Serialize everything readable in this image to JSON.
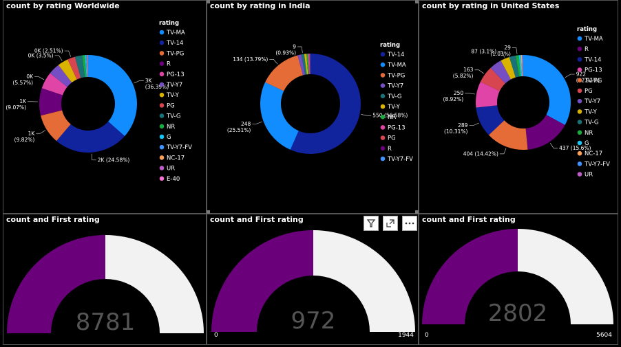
{
  "colors": {
    "TV-MA": "#118DFF",
    "TV-14": "#12239E",
    "TV-PG": "#E66C37",
    "R": "#6B007B",
    "PG-13": "#E044A7",
    "TV-Y7": "#744EC2",
    "TV-Y": "#D9B300",
    "PG": "#D64550",
    "TV-G": "#197278",
    "NR": "#1AAB40",
    "G": "#15C6F4",
    "TV-Y7-FV": "#4092FF",
    "NC-17": "#FFA058",
    "UR": "#BE5DC9",
    "E-40": "#F472D0"
  },
  "gauge_colors": {
    "fill": "#6B007B",
    "track": "#F2F2F2"
  },
  "chart_data": [
    {
      "type": "pie",
      "title": "count by rating Worldwide",
      "legend_title": "rating",
      "legend": [
        "TV-MA",
        "TV-14",
        "TV-PG",
        "R",
        "PG-13",
        "TV-Y7",
        "TV-Y",
        "PG",
        "TV-G",
        "NR",
        "G",
        "TV-Y7-FV",
        "NC-17",
        "UR",
        "E-40"
      ],
      "slices": [
        {
          "name": "TV-MA",
          "share": 36.39,
          "label": "3K",
          "pct": "(36.39%)"
        },
        {
          "name": "TV-14",
          "share": 24.58,
          "label": "2K (24.58%)"
        },
        {
          "name": "TV-PG",
          "share": 9.82,
          "label": "1K",
          "pct": "(9.82%)"
        },
        {
          "name": "R",
          "share": 9.07,
          "label": "1K",
          "pct": "(9.07%)"
        },
        {
          "name": "PG-13",
          "share": 5.57,
          "label": "0K",
          "pct": "(5.57%)"
        },
        {
          "name": "TV-Y7",
          "share": 3.8,
          "label": ""
        },
        {
          "name": "TV-Y",
          "share": 3.5,
          "label": "0K (3.5%)"
        },
        {
          "name": "PG",
          "share": 2.51,
          "label": "0K (2.51%)"
        },
        {
          "name": "TV-G",
          "share": 2.4,
          "label": ""
        },
        {
          "name": "NR",
          "share": 0.9,
          "label": ""
        },
        {
          "name": "G",
          "share": 0.4,
          "label": ""
        },
        {
          "name": "TV-Y7-FV",
          "share": 0.3,
          "label": ""
        },
        {
          "name": "NC-17",
          "share": 0.2,
          "label": ""
        },
        {
          "name": "UR",
          "share": 0.1,
          "label": ""
        },
        {
          "name": "E-40",
          "share": 0.05,
          "label": ""
        }
      ]
    },
    {
      "type": "pie",
      "title": "count by rating in India",
      "legend_title": "rating",
      "legend": [
        "TV-14",
        "TV-MA",
        "TV-PG",
        "TV-Y7",
        "TV-G",
        "TV-Y",
        "NR",
        "PG-13",
        "PG",
        "R",
        "TV-Y7-FV"
      ],
      "slices": [
        {
          "name": "TV-14",
          "share": 56.58,
          "label": "550 (56.58%)"
        },
        {
          "name": "TV-MA",
          "share": 25.51,
          "label": "248",
          "pct": "(25.51%)"
        },
        {
          "name": "TV-PG",
          "share": 13.79,
          "label": "134 (13.79%)"
        },
        {
          "name": "TV-Y7",
          "share": 1.2,
          "label": ""
        },
        {
          "name": "TV-G",
          "share": 0.93,
          "label": "9",
          "pct": "(0.93%)"
        },
        {
          "name": "TV-Y",
          "share": 0.7,
          "label": ""
        },
        {
          "name": "NR",
          "share": 0.5,
          "label": ""
        },
        {
          "name": "PG-13",
          "share": 0.4,
          "label": ""
        },
        {
          "name": "PG",
          "share": 0.2,
          "label": ""
        },
        {
          "name": "R",
          "share": 0.1,
          "label": ""
        },
        {
          "name": "TV-Y7-FV",
          "share": 0.1,
          "label": ""
        }
      ]
    },
    {
      "type": "pie",
      "title": "count by rating in United States",
      "legend_title": "rating",
      "legend": [
        "TV-MA",
        "R",
        "TV-14",
        "PG-13",
        "TV-PG",
        "PG",
        "TV-Y7",
        "TV-Y",
        "TV-G",
        "NR",
        "G",
        "NC-17",
        "TV-Y7-FV",
        "UR"
      ],
      "slices": [
        {
          "name": "TV-MA",
          "share": 32.91,
          "label": "922",
          "pct": "(32.91%)"
        },
        {
          "name": "R",
          "share": 15.6,
          "label": "437 (15.6%)"
        },
        {
          "name": "TV-PG",
          "share": 14.42,
          "label": "404 (14.42%)"
        },
        {
          "name": "TV-14",
          "share": 10.31,
          "label": "289",
          "pct": "(10.31%)"
        },
        {
          "name": "PG-13",
          "share": 8.92,
          "label": "250",
          "pct": "(8.92%)"
        },
        {
          "name": "PG",
          "share": 5.82,
          "label": "163",
          "pct": "(5.82%)"
        },
        {
          "name": "TV-Y7",
          "share": 4.2,
          "label": ""
        },
        {
          "name": "TV-Y",
          "share": 3.1,
          "label": "87 (3.1%)"
        },
        {
          "name": "TV-G",
          "share": 2.2,
          "label": ""
        },
        {
          "name": "NR",
          "share": 1.03,
          "label": "29",
          "pct": "(1.03%)"
        },
        {
          "name": "G",
          "share": 0.7,
          "label": ""
        },
        {
          "name": "NC-17",
          "share": 0.4,
          "label": ""
        },
        {
          "name": "TV-Y7-FV",
          "share": 0.3,
          "label": ""
        },
        {
          "name": "UR",
          "share": 0.1,
          "label": ""
        }
      ]
    },
    {
      "type": "gauge",
      "title": "count and First rating",
      "value": 8781,
      "value_label": "8781",
      "min": 0,
      "max": 17562,
      "min_label": "",
      "max_label": ""
    },
    {
      "type": "gauge",
      "title": "count and First rating",
      "value": 972,
      "value_label": "972",
      "min": 0,
      "max": 1944,
      "min_label": "0",
      "max_label": "1944"
    },
    {
      "type": "gauge",
      "title": "count and First rating",
      "value": 2802,
      "value_label": "2802",
      "min": 0,
      "max": 5604,
      "min_label": "0",
      "max_label": "5604"
    }
  ]
}
